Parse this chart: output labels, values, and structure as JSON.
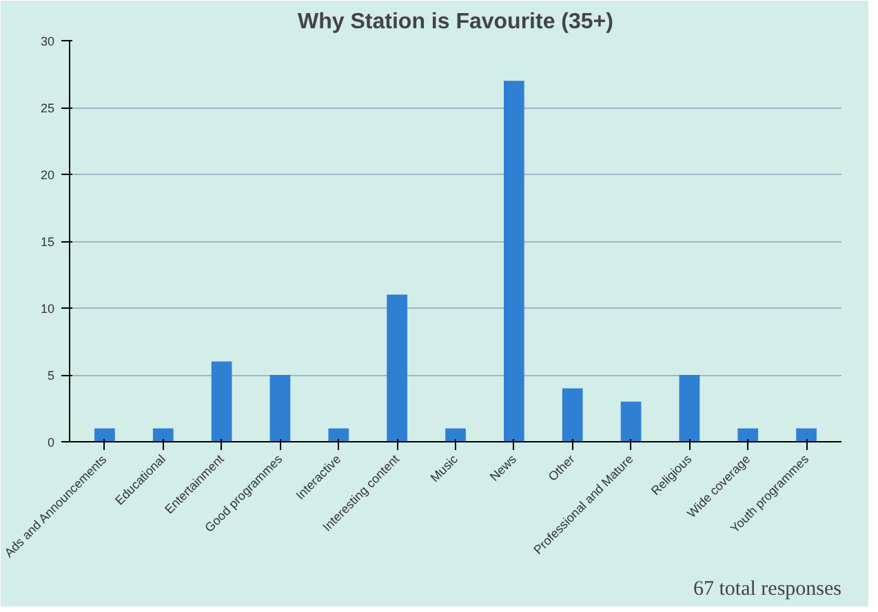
{
  "chart_data": {
    "type": "bar",
    "title": "Why Station is Favourite (35+)",
    "categories": [
      "Ads and Announcements",
      "Educational",
      "Entertainment",
      "Good programmes",
      "Interactive",
      "Interesting content",
      "Music",
      "News",
      "Other",
      "Professional and Mature",
      "Religious",
      "Wide coverage",
      "Youth programmes"
    ],
    "values": [
      1,
      1,
      6,
      5,
      1,
      11,
      1,
      27,
      4,
      3,
      5,
      1,
      1
    ],
    "color": "#2f7fd3",
    "ylim": [
      0,
      30
    ],
    "yticks": [
      0,
      5,
      10,
      15,
      20,
      25,
      30
    ],
    "grid": "y",
    "annotations": [
      "67 total responses"
    ]
  }
}
